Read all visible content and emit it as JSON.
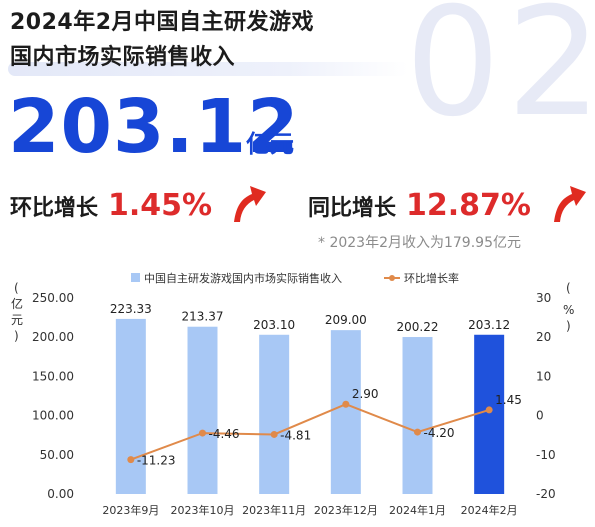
{
  "header": {
    "title_line1": "2024年2月中国自主研发游戏",
    "title_line2": "国内市场实际销售收入",
    "watermark": "02"
  },
  "headline": {
    "value": "203.12",
    "unit": "亿元"
  },
  "growth": {
    "mom_label": "环比增长",
    "mom_value": "1.45%",
    "yoy_label": "同比增长",
    "yoy_value": "12.87%",
    "note": "* 2023年2月收入为179.95亿元"
  },
  "colors": {
    "bar": "#a8c8f5",
    "bar_highlight": "#1f52dc",
    "line": "#e08a4a",
    "accent_red": "#dd2b2b",
    "accent_blue": "#1746d6"
  },
  "chart_data": {
    "type": "bar",
    "categories": [
      "2023年9月",
      "2023年10月",
      "2023年11月",
      "2023年12月",
      "2024年1月",
      "2024年2月"
    ],
    "series": [
      {
        "name": "中国自主研发游戏国内市场实际销售收入",
        "type": "bar",
        "axis": "left",
        "values": [
          223.33,
          213.37,
          203.1,
          209.0,
          200.22,
          203.12
        ],
        "labels": [
          "223.33",
          "213.37",
          "203.10",
          "209.00",
          "200.22",
          "203.12"
        ]
      },
      {
        "name": "环比增长率",
        "type": "line",
        "axis": "right",
        "values": [
          -11.23,
          -4.46,
          -4.81,
          2.9,
          -4.2,
          1.45
        ],
        "labels": [
          "-11.23",
          "-4.46",
          "-4.81",
          "2.90",
          "-4.20",
          "1.45"
        ]
      }
    ],
    "y_left": {
      "label": "亿元",
      "ylim": [
        0,
        250
      ],
      "ticks": [
        "0.00",
        "50.00",
        "100.00",
        "150.00",
        "200.00",
        "250.00"
      ]
    },
    "y_right": {
      "label": "%",
      "ylim": [
        -20,
        30
      ],
      "ticks": [
        "-20",
        "-10",
        "0",
        "10",
        "20",
        "30"
      ]
    },
    "grid": false,
    "legend": "top"
  }
}
